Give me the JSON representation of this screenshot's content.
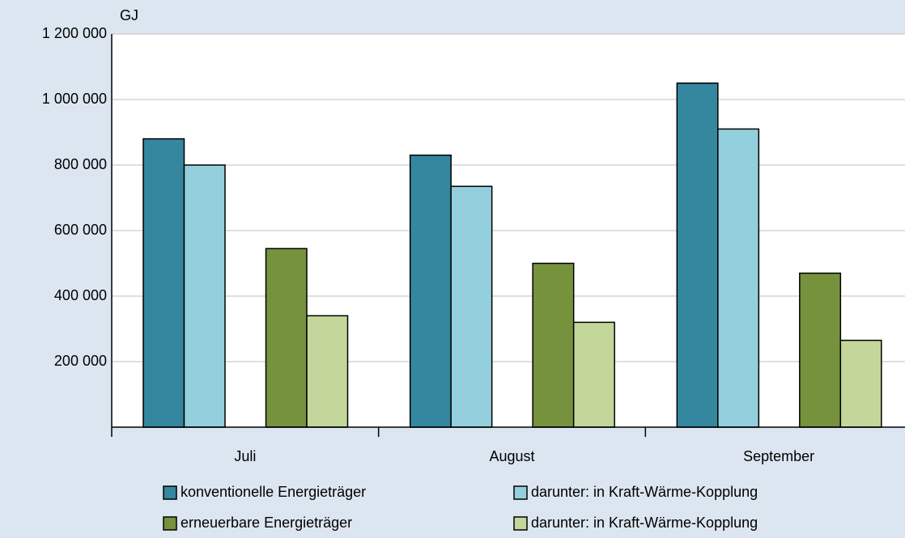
{
  "chart_data": {
    "type": "bar",
    "y_label": "GJ",
    "categories": [
      "Juli",
      "August",
      "September"
    ],
    "series": [
      {
        "name": "konventionelle Energieträger",
        "color": "#34879f",
        "values": [
          880000,
          830000,
          1050000
        ]
      },
      {
        "name": "darunter: in Kraft-Wärme-Kopplung",
        "color": "#93cfdc",
        "values": [
          800000,
          735000,
          910000
        ]
      },
      {
        "name": "erneuerbare Energieträger",
        "color": "#76923c",
        "values": [
          545000,
          500000,
          470000
        ]
      },
      {
        "name": "darunter: in Kraft-Wärme-Kopplung",
        "color": "#c4d79b",
        "values": [
          340000,
          320000,
          265000
        ]
      }
    ],
    "ylim": [
      0,
      1200000
    ],
    "yticks": [
      {
        "value": 200000,
        "label": "200 000"
      },
      {
        "value": 400000,
        "label": "400 000"
      },
      {
        "value": 600000,
        "label": "600 000"
      },
      {
        "value": 800000,
        "label": "800 000"
      },
      {
        "value": 1000000,
        "label": "1 000 000"
      },
      {
        "value": 1200000,
        "label": "1 200 000"
      }
    ],
    "grid": true
  }
}
